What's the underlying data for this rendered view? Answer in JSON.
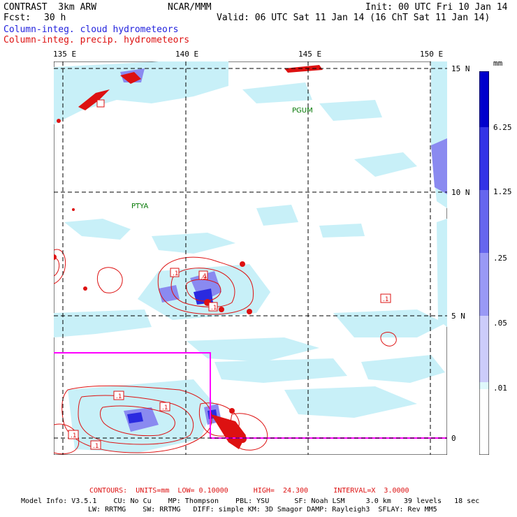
{
  "header": {
    "model": "CONTRAST  3km ARW",
    "org": "NCAR/MMM",
    "init": "Init: 00 UTC Fri 10 Jan 14",
    "fcst_label": "Fcst:",
    "fcst_value": "30 h",
    "valid": "Valid: 06 UTC Sat 11 Jan 14 (16 ChT Sat 11 Jan 14)",
    "field_cloud": "Column-integ. cloud hydrometeors",
    "field_precip": "Column-integ. precip. hydrometeors"
  },
  "map": {
    "lon_labels": [
      "135 E",
      "140 E",
      "145 E",
      "150 E"
    ],
    "lat_labels": [
      "15 N",
      "10 N",
      "5 N",
      "0"
    ],
    "stations": [
      "PGUM",
      "PTYA"
    ],
    "contour_labels": [
      ".1",
      ".1",
      ".9",
      ".1",
      ".1",
      ".1",
      ".1",
      ".1",
      ".1",
      ".1"
    ],
    "colors": {
      "cloud_light": "#c8f0f8",
      "cloud_mid": "#8a8af0",
      "cloud_dark": "#2a2ae0",
      "precip": "#dd1111",
      "box": "#ff00ff"
    }
  },
  "colorbar": {
    "unit": "mm",
    "labels": [
      "6.25",
      "1.25",
      ".25",
      ".05",
      ".01"
    ],
    "colors": [
      "#0000cc",
      "#3333e6",
      "#6666ee",
      "#9999f5",
      "#ccccfa",
      "#dff8fb",
      "#ffffff"
    ]
  },
  "footer": {
    "contours": "CONTOURS:  UNITS=mm  LOW= 0.10000      HIGH=  24.300      INTERVAL=X  3.0000",
    "model_info_1": "Model Info: V3.5.1    CU: No Cu    MP: Thompson    PBL: YSU      SF: Noah LSM     3.0 km   39 levels   18 sec",
    "model_info_2": "LW: RRTMG    SW: RRTMG   DIFF: simple KM: 3D Smagor DAMP: Rayleigh3  SFLAY: Rev MM5"
  }
}
